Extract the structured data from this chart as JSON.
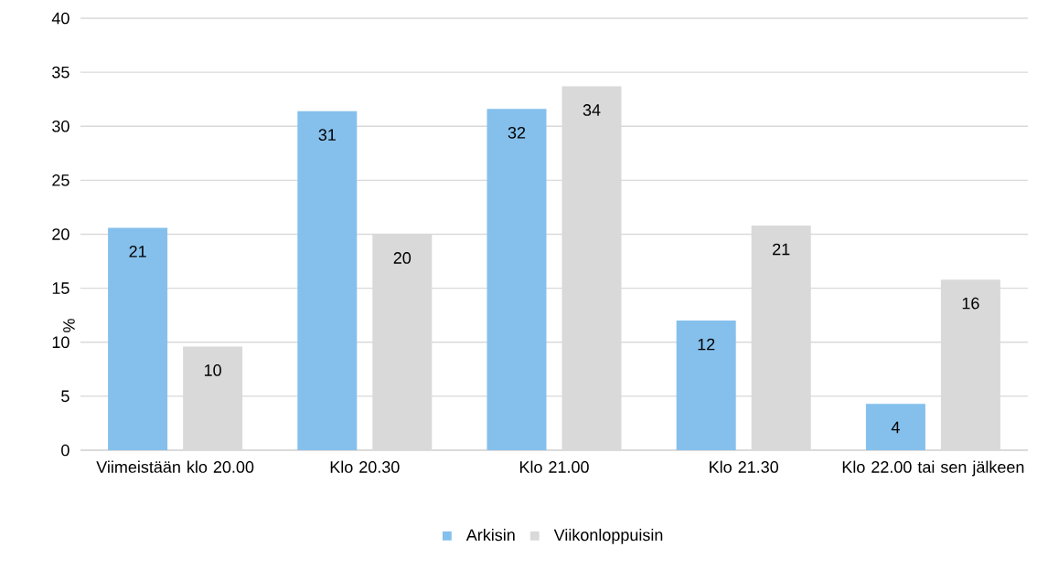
{
  "chart_data": {
    "type": "bar",
    "ylabel": "%",
    "categories": [
      "Viimeistään klo 20.00",
      "Klo 20.30",
      "Klo 21.00",
      "Klo 21.30",
      "Klo 22.00 tai sen jälkeen"
    ],
    "series": [
      {
        "name": "Arkisin",
        "color": "#85c0ec",
        "values": [
          20.6,
          31.4,
          31.6,
          12.0,
          4.3
        ],
        "value_labels": [
          "21",
          "31",
          "32",
          "12",
          "4"
        ]
      },
      {
        "name": "Viikonloppuisin",
        "color": "#d9d9d9",
        "values": [
          9.6,
          20.0,
          33.7,
          20.8,
          15.8
        ],
        "value_labels": [
          "10",
          "20",
          "34",
          "21",
          "16"
        ]
      }
    ],
    "ylim": [
      0,
      40
    ],
    "yticks": [
      0,
      5,
      10,
      15,
      20,
      25,
      30,
      35,
      40
    ],
    "grid": "y",
    "legend": "bottom"
  }
}
